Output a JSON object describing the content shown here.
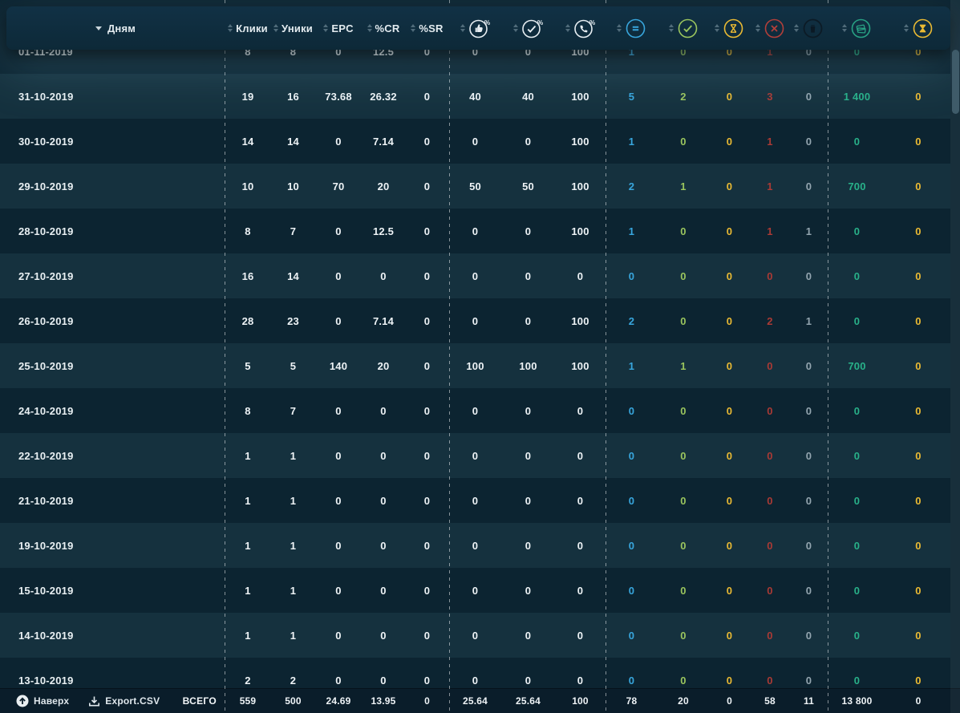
{
  "table": {
    "header": {
      "date_label": "Дням",
      "metric_columns": [
        "Клики",
        "Уники",
        "EPC",
        "%CR",
        "%SR"
      ],
      "icon_columns": [
        "thumb-up-percent-icon",
        "check-percent-icon",
        "phone-percent-icon",
        "equals-circle-icon",
        "check-circle-icon",
        "hourglass-circle-icon",
        "cross-circle-icon",
        "trash-circle-icon",
        "money-circle-icon",
        "hourglass-paid-icon"
      ]
    },
    "colors": {
      "blue": "#38a6dd",
      "green": "#9ac55e",
      "yellow": "#eaba33",
      "red": "#aa3a35",
      "gray": "#93a5af",
      "teal": "#28b189",
      "white": "#eef3f6"
    },
    "rows": [
      {
        "date": "01-11-2019",
        "values": [
          "8",
          "8",
          "0",
          "12.5",
          "0",
          "0",
          "0",
          "100",
          "1",
          "0",
          "0",
          "1",
          "0",
          "0",
          "0"
        ]
      },
      {
        "date": "31-10-2019",
        "values": [
          "19",
          "16",
          "73.68",
          "26.32",
          "0",
          "40",
          "40",
          "100",
          "5",
          "2",
          "0",
          "3",
          "0",
          "1 400",
          "0"
        ]
      },
      {
        "date": "30-10-2019",
        "values": [
          "14",
          "14",
          "0",
          "7.14",
          "0",
          "0",
          "0",
          "100",
          "1",
          "0",
          "0",
          "1",
          "0",
          "0",
          "0"
        ]
      },
      {
        "date": "29-10-2019",
        "values": [
          "10",
          "10",
          "70",
          "20",
          "0",
          "50",
          "50",
          "100",
          "2",
          "1",
          "0",
          "1",
          "0",
          "700",
          "0"
        ]
      },
      {
        "date": "28-10-2019",
        "values": [
          "8",
          "7",
          "0",
          "12.5",
          "0",
          "0",
          "0",
          "100",
          "1",
          "0",
          "0",
          "1",
          "1",
          "0",
          "0"
        ]
      },
      {
        "date": "27-10-2019",
        "values": [
          "16",
          "14",
          "0",
          "0",
          "0",
          "0",
          "0",
          "0",
          "0",
          "0",
          "0",
          "0",
          "0",
          "0",
          "0"
        ]
      },
      {
        "date": "26-10-2019",
        "values": [
          "28",
          "23",
          "0",
          "7.14",
          "0",
          "0",
          "0",
          "100",
          "2",
          "0",
          "0",
          "2",
          "1",
          "0",
          "0"
        ]
      },
      {
        "date": "25-10-2019",
        "values": [
          "5",
          "5",
          "140",
          "20",
          "0",
          "100",
          "100",
          "100",
          "1",
          "1",
          "0",
          "0",
          "0",
          "700",
          "0"
        ]
      },
      {
        "date": "24-10-2019",
        "values": [
          "8",
          "7",
          "0",
          "0",
          "0",
          "0",
          "0",
          "0",
          "0",
          "0",
          "0",
          "0",
          "0",
          "0",
          "0"
        ]
      },
      {
        "date": "22-10-2019",
        "values": [
          "1",
          "1",
          "0",
          "0",
          "0",
          "0",
          "0",
          "0",
          "0",
          "0",
          "0",
          "0",
          "0",
          "0",
          "0"
        ]
      },
      {
        "date": "21-10-2019",
        "values": [
          "1",
          "1",
          "0",
          "0",
          "0",
          "0",
          "0",
          "0",
          "0",
          "0",
          "0",
          "0",
          "0",
          "0",
          "0"
        ]
      },
      {
        "date": "19-10-2019",
        "values": [
          "1",
          "1",
          "0",
          "0",
          "0",
          "0",
          "0",
          "0",
          "0",
          "0",
          "0",
          "0",
          "0",
          "0",
          "0"
        ]
      },
      {
        "date": "15-10-2019",
        "values": [
          "1",
          "1",
          "0",
          "0",
          "0",
          "0",
          "0",
          "0",
          "0",
          "0",
          "0",
          "0",
          "0",
          "0",
          "0"
        ]
      },
      {
        "date": "14-10-2019",
        "values": [
          "1",
          "1",
          "0",
          "0",
          "0",
          "0",
          "0",
          "0",
          "0",
          "0",
          "0",
          "0",
          "0",
          "0",
          "0"
        ]
      },
      {
        "date": "13-10-2019",
        "values": [
          "2",
          "2",
          "0",
          "0",
          "0",
          "0",
          "0",
          "0",
          "0",
          "0",
          "0",
          "0",
          "0",
          "0",
          "0"
        ]
      }
    ]
  },
  "footer": {
    "back_to_top": "Наверх",
    "export_csv": "Export.CSV",
    "total_label": "ВСЕГО",
    "totals": [
      "559",
      "500",
      "24.69",
      "13.95",
      "0",
      "25.64",
      "25.64",
      "100",
      "78",
      "20",
      "0",
      "58",
      "11",
      "13 800",
      "0"
    ]
  }
}
